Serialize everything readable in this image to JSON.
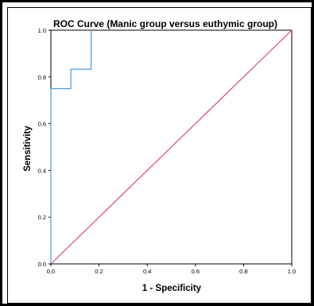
{
  "chart_data": {
    "type": "line",
    "title": "ROC Curve (Manic group versus euthymic group)",
    "xlabel": "1 - Specificity",
    "ylabel": "Sensitivity",
    "xlim": [
      0.0,
      1.0
    ],
    "ylim": [
      0.0,
      1.0
    ],
    "x_ticks": [
      "0.0",
      "0.2",
      "0.4",
      "0.6",
      "0.8",
      "1.0"
    ],
    "y_ticks": [
      "0.0",
      "0.2",
      "0.4",
      "0.6",
      "0.8",
      "1.0"
    ],
    "grid": false,
    "series": [
      {
        "color": "#4f98d8",
        "x": [
          0.0,
          0.0,
          0.083,
          0.083,
          0.167,
          0.167
        ],
        "y": [
          0.0,
          0.75,
          0.75,
          0.833,
          0.833,
          1.0
        ]
      },
      {
        "color": "#e0456a",
        "x": [
          0.0,
          1.0
        ],
        "y": [
          0.0,
          1.0
        ]
      }
    ]
  }
}
